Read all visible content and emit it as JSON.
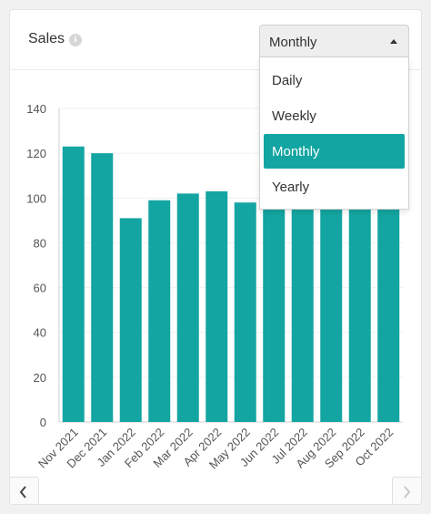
{
  "widget": {
    "title": "Sales",
    "info_icon": "info-icon",
    "period_select": {
      "value": "Monthly",
      "options": [
        "Daily",
        "Weekly",
        "Monthly",
        "Yearly"
      ],
      "active_index": 2
    }
  },
  "navigation": {
    "prev_icon": "chevron-left-icon",
    "next_icon": "chevron-right-icon"
  },
  "colors": {
    "bar": "#13a5a2",
    "accent": "#13a5a2"
  },
  "chart_data": {
    "type": "bar",
    "categories": [
      "Nov 2021",
      "Dec 2021",
      "Jan 2022",
      "Feb 2022",
      "Mar 2022",
      "Apr 2022",
      "May 2022",
      "Jun 2022",
      "Jul 2022",
      "Aug 2022",
      "Sep 2022",
      "Oct 2022"
    ],
    "values": [
      123,
      120,
      91,
      99,
      102,
      103,
      98,
      100,
      100,
      100,
      100,
      100
    ],
    "ylim": [
      0,
      140
    ],
    "yticks": [
      0,
      20,
      40,
      60,
      80,
      100,
      120,
      140
    ],
    "grid": true,
    "title": "",
    "xlabel": "",
    "ylabel": ""
  }
}
